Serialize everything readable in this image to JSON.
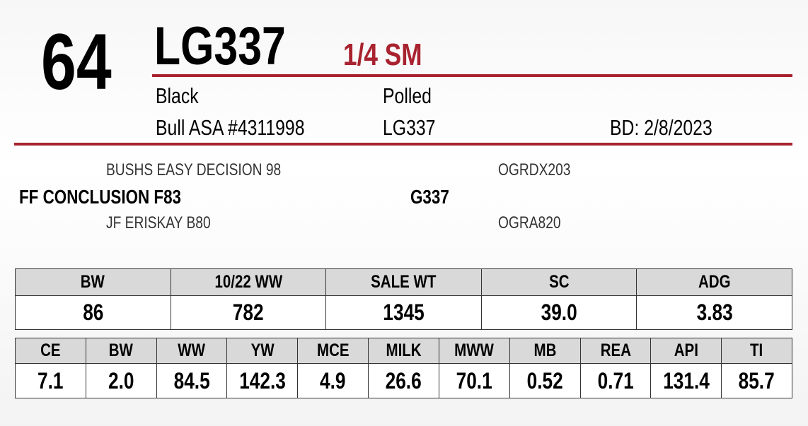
{
  "lot": "64",
  "name": "LG337",
  "breed": "1/4 SM",
  "details": {
    "color": "Black",
    "horn": "Polled",
    "registration": "Bull ASA #4311998",
    "tattoo": "LG337",
    "birth_date": "BD: 2/8/2023"
  },
  "pedigree": {
    "sire_sire": "BUSHS EASY DECISION 98",
    "sire": "FF CONCLUSION F83",
    "sire_dam": "JF ERISKAY B80",
    "dam_sire": "OGRDX203",
    "dam": "G337",
    "dam_dam": "OGRA820"
  },
  "performance": {
    "headers": [
      "BW",
      "10/22 WW",
      "SALE WT",
      "SC",
      "ADG"
    ],
    "values": [
      "86",
      "782",
      "1345",
      "39.0",
      "3.83"
    ]
  },
  "epds": {
    "headers": [
      "CE",
      "BW",
      "WW",
      "YW",
      "MCE",
      "MILK",
      "MWW",
      "MB",
      "REA",
      "API",
      "TI"
    ],
    "values": [
      "7.1",
      "2.0",
      "84.5",
      "142.3",
      "4.9",
      "26.6",
      "70.1",
      "0.52",
      "0.71",
      "131.4",
      "85.7"
    ]
  }
}
